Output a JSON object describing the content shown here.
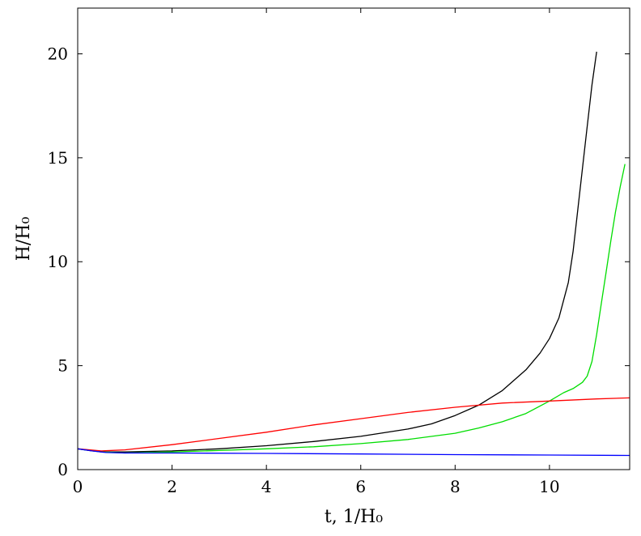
{
  "chart_data": {
    "type": "line",
    "xlabel": "t, 1/H₀",
    "ylabel": "H/H₀",
    "xlim": [
      0,
      11.7
    ],
    "ylim": [
      0,
      22.2
    ],
    "xticks": [
      0,
      2,
      4,
      6,
      8,
      10
    ],
    "yticks": [
      0,
      5,
      10,
      15,
      20
    ],
    "grid": false,
    "series": [
      {
        "color": "#000000",
        "x": [
          0,
          0.3,
          0.6,
          1,
          2,
          3,
          4,
          5,
          6,
          7,
          7.5,
          8,
          8.5,
          9,
          9.5,
          9.8,
          10,
          10.2,
          10.4,
          10.5,
          10.6,
          10.7,
          10.8,
          10.9,
          11.0
        ],
        "y": [
          1.0,
          0.9,
          0.85,
          0.85,
          0.9,
          1.0,
          1.15,
          1.35,
          1.6,
          1.95,
          2.2,
          2.6,
          3.1,
          3.8,
          4.8,
          5.6,
          6.3,
          7.3,
          9.0,
          10.5,
          12.5,
          14.5,
          16.5,
          18.5,
          20.1
        ]
      },
      {
        "color": "#00dd00",
        "x": [
          0,
          0.5,
          1,
          2,
          3,
          4,
          5,
          6,
          7,
          8,
          8.5,
          9,
          9.5,
          10,
          10.3,
          10.5,
          10.7,
          10.8,
          10.9,
          11.0,
          11.1,
          11.2,
          11.3,
          11.4,
          11.5,
          11.6
        ],
        "y": [
          1.0,
          0.85,
          0.8,
          0.85,
          0.92,
          1.0,
          1.1,
          1.25,
          1.45,
          1.75,
          2.0,
          2.3,
          2.7,
          3.3,
          3.7,
          3.9,
          4.2,
          4.5,
          5.2,
          6.5,
          8.0,
          9.5,
          11.0,
          12.4,
          13.6,
          14.7
        ]
      },
      {
        "color": "#ff0000",
        "x": [
          0,
          0.5,
          1,
          2,
          3,
          4,
          5,
          6,
          7,
          8,
          9,
          10,
          11,
          11.7
        ],
        "y": [
          1.0,
          0.9,
          0.95,
          1.2,
          1.5,
          1.8,
          2.15,
          2.45,
          2.75,
          3.0,
          3.2,
          3.3,
          3.4,
          3.45
        ]
      },
      {
        "color": "#0000ff",
        "x": [
          0,
          0.3,
          0.6,
          1,
          2,
          4,
          6,
          8,
          10,
          11.7
        ],
        "y": [
          1.0,
          0.9,
          0.82,
          0.8,
          0.8,
          0.78,
          0.75,
          0.72,
          0.7,
          0.68
        ]
      }
    ]
  }
}
